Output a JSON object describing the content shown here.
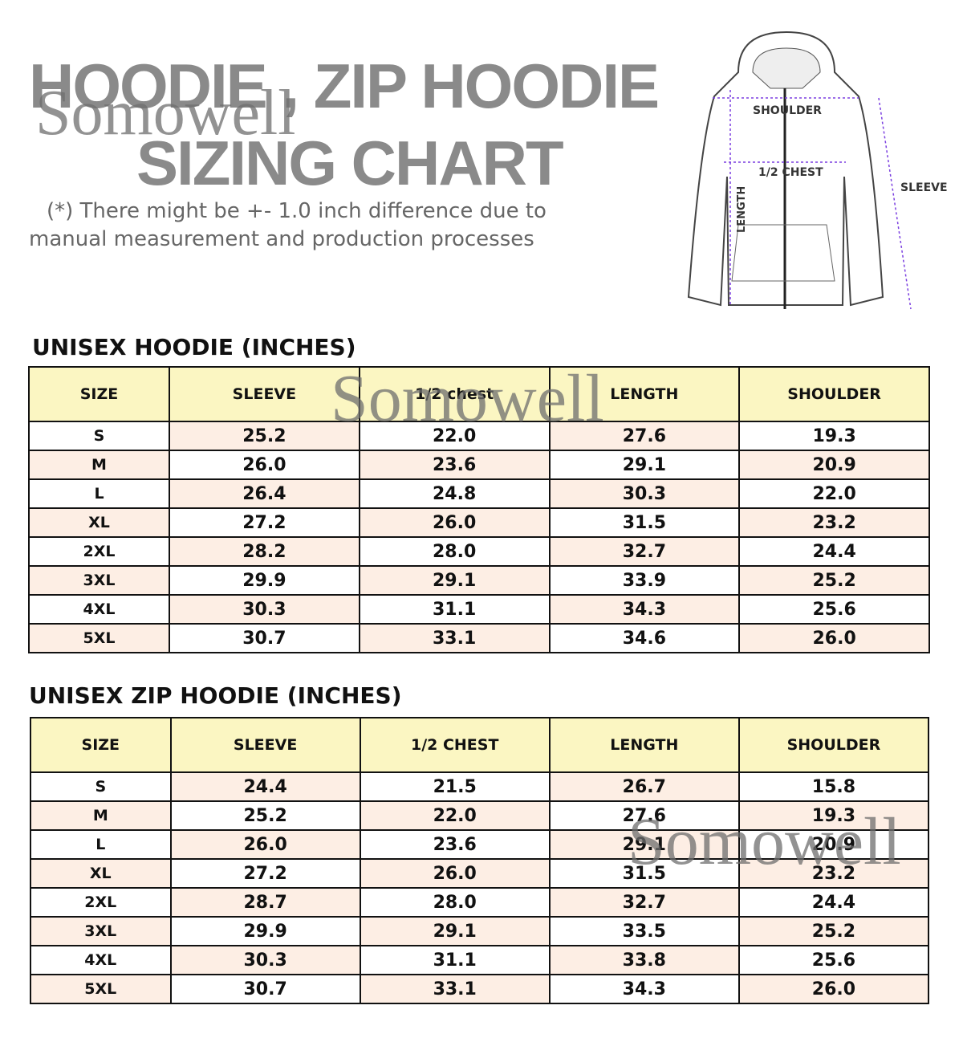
{
  "header": {
    "title_line1": "HOODIE , ZIP HOODIE",
    "title_line2": "SIZING CHART",
    "note_line1": "(*) There might be +- 1.0 inch difference due to",
    "note_line2": "manual measurement and production processes",
    "watermark": "Somowell"
  },
  "diagram": {
    "labels": {
      "shoulder": "SHOULDER",
      "chest": "1/2 CHEST",
      "length": "LENGTH",
      "sleeve": "SLEEVE"
    },
    "arrow_color": "#7b3fe0"
  },
  "colors": {
    "header_bg": "#fbf6c2",
    "shade": "#fdeee4"
  },
  "tables": [
    {
      "title": "UNISEX HOODIE (INCHES)",
      "headers": [
        "SIZE",
        "SLEEVE",
        "1/2 chest",
        "LENGTH",
        "SHOULDER"
      ],
      "rows": [
        [
          "S",
          "25.2",
          "22.0",
          "27.6",
          "19.3"
        ],
        [
          "M",
          "26.0",
          "23.6",
          "29.1",
          "20.9"
        ],
        [
          "L",
          "26.4",
          "24.8",
          "30.3",
          "22.0"
        ],
        [
          "XL",
          "27.2",
          "26.0",
          "31.5",
          "23.2"
        ],
        [
          "2XL",
          "28.2",
          "28.0",
          "32.7",
          "24.4"
        ],
        [
          "3XL",
          "29.9",
          "29.1",
          "33.9",
          "25.2"
        ],
        [
          "4XL",
          "30.3",
          "31.1",
          "34.3",
          "25.6"
        ],
        [
          "5XL",
          "30.7",
          "33.1",
          "34.6",
          "26.0"
        ]
      ]
    },
    {
      "title": "UNISEX ZIP HOODIE (INCHES)",
      "headers": [
        "SIZE",
        "SLEEVE",
        "1/2 CHEST",
        "LENGTH",
        "SHOULDER"
      ],
      "rows": [
        [
          "S",
          "24.4",
          "21.5",
          "26.7",
          "15.8"
        ],
        [
          "M",
          "25.2",
          "22.0",
          "27.6",
          "19.3"
        ],
        [
          "L",
          "26.0",
          "23.6",
          "29.1",
          "20.9"
        ],
        [
          "XL",
          "27.2",
          "26.0",
          "31.5",
          "23.2"
        ],
        [
          "2XL",
          "28.7",
          "28.0",
          "32.7",
          "24.4"
        ],
        [
          "3XL",
          "29.9",
          "29.1",
          "33.5",
          "25.2"
        ],
        [
          "4XL",
          "30.3",
          "31.1",
          "33.8",
          "25.6"
        ],
        [
          "5XL",
          "30.7",
          "33.1",
          "34.3",
          "26.0"
        ]
      ]
    }
  ]
}
